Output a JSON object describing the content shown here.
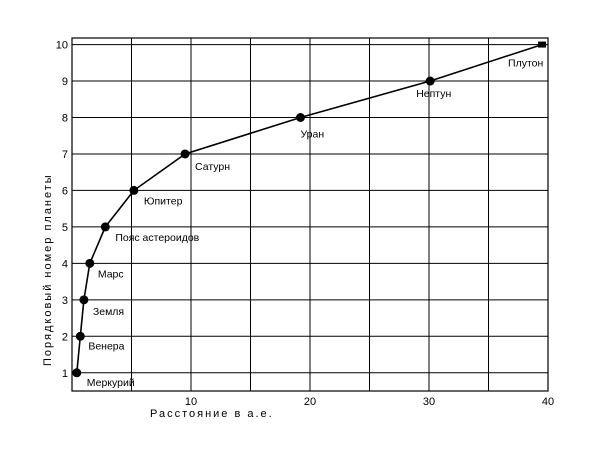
{
  "chart_data": {
    "type": "line",
    "title": "",
    "xlabel": "Расстояние в а.е.",
    "ylabel": "Порядковый номер планеты",
    "xlim": [
      0,
      40
    ],
    "ylim": [
      0.5,
      10
    ],
    "xticks": [
      10,
      20,
      30,
      40
    ],
    "yticks": [
      1,
      2,
      3,
      4,
      5,
      6,
      7,
      8,
      9,
      10
    ],
    "grid": true,
    "series": [
      {
        "points": [
          {
            "x": 0.4,
            "y": 1,
            "label": "Меркурий"
          },
          {
            "x": 0.7,
            "y": 2,
            "label": "Венера"
          },
          {
            "x": 1.0,
            "y": 3,
            "label": "Земля"
          },
          {
            "x": 1.5,
            "y": 4,
            "label": "Марс"
          },
          {
            "x": 2.8,
            "y": 5,
            "label": "Пояс астероидов"
          },
          {
            "x": 5.2,
            "y": 6,
            "label": "Юпитер"
          },
          {
            "x": 9.5,
            "y": 7,
            "label": "Сатурн"
          },
          {
            "x": 19.2,
            "y": 8,
            "label": "Уран"
          },
          {
            "x": 30.1,
            "y": 9,
            "label": "Нептун"
          },
          {
            "x": 39.5,
            "y": 10,
            "label": "Плутон"
          }
        ]
      }
    ]
  }
}
